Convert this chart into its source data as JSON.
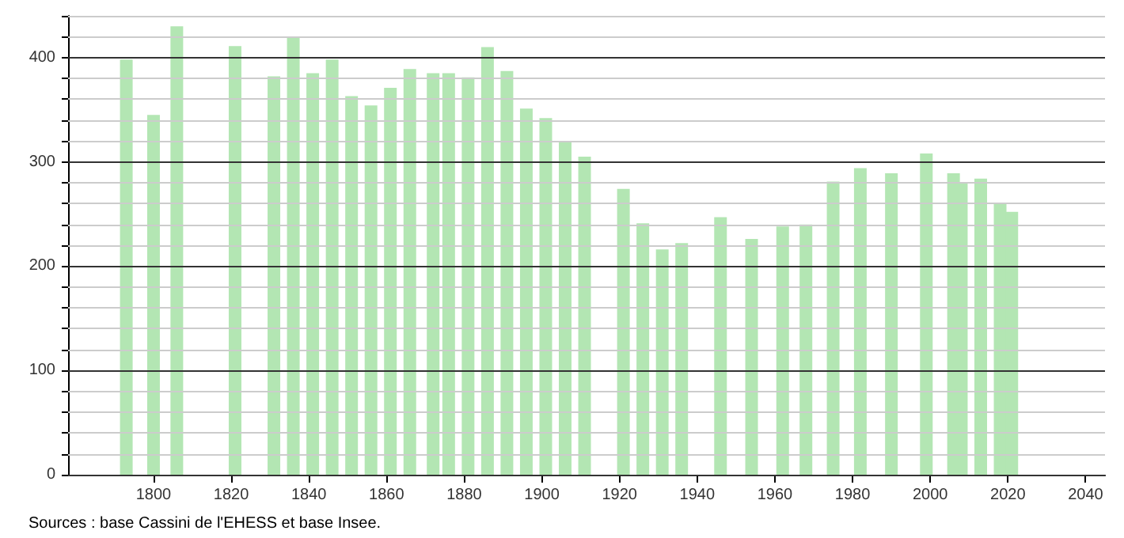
{
  "chart_data": {
    "type": "bar",
    "x": [
      1793,
      1800,
      1806,
      1821,
      1831,
      1836,
      1841,
      1846,
      1851,
      1856,
      1861,
      1866,
      1872,
      1876,
      1881,
      1886,
      1891,
      1896,
      1901,
      1906,
      1911,
      1921,
      1926,
      1931,
      1936,
      1946,
      1954,
      1962,
      1968,
      1975,
      1982,
      1990,
      1999,
      2006,
      2008,
      2013,
      2018,
      2021
    ],
    "values": [
      398,
      345,
      430,
      411,
      382,
      420,
      385,
      398,
      363,
      354,
      371,
      389,
      385,
      385,
      381,
      410,
      387,
      351,
      342,
      320,
      305,
      274,
      241,
      216,
      222,
      247,
      226,
      238,
      240,
      281,
      294,
      289,
      308,
      289,
      280,
      284,
      260,
      252
    ],
    "color": "#b3e6b3",
    "xlim": [
      1778,
      2045
    ],
    "xticks": [
      1800,
      1820,
      1840,
      1860,
      1880,
      1900,
      1920,
      1940,
      1960,
      1980,
      2000,
      2020,
      2040
    ],
    "ylim": [
      0,
      440
    ],
    "yticks": [
      0,
      {
        "value": 20,
        "label": null
      },
      {
        "value": 40,
        "label": null
      },
      {
        "value": 60,
        "label": null
      },
      {
        "value": 80,
        "label": null
      },
      100,
      {
        "value": 120,
        "label": null
      },
      {
        "value": 140,
        "label": null
      },
      {
        "value": 160,
        "label": null
      },
      {
        "value": 180,
        "label": null
      },
      200,
      {
        "value": 220,
        "label": null
      },
      {
        "value": 240,
        "label": null
      },
      {
        "value": 260,
        "label": null
      },
      {
        "value": 280,
        "label": null
      },
      300,
      {
        "value": 320,
        "label": null
      },
      {
        "value": 340,
        "label": null
      },
      {
        "value": 360,
        "label": null
      },
      {
        "value": 380,
        "label": null
      },
      400,
      {
        "value": 420,
        "label": null
      },
      {
        "value": 440,
        "label": null
      }
    ],
    "grid": "y",
    "annotations": [
      "Sources : base Cassini de l'EHESS et base Insee."
    ]
  }
}
